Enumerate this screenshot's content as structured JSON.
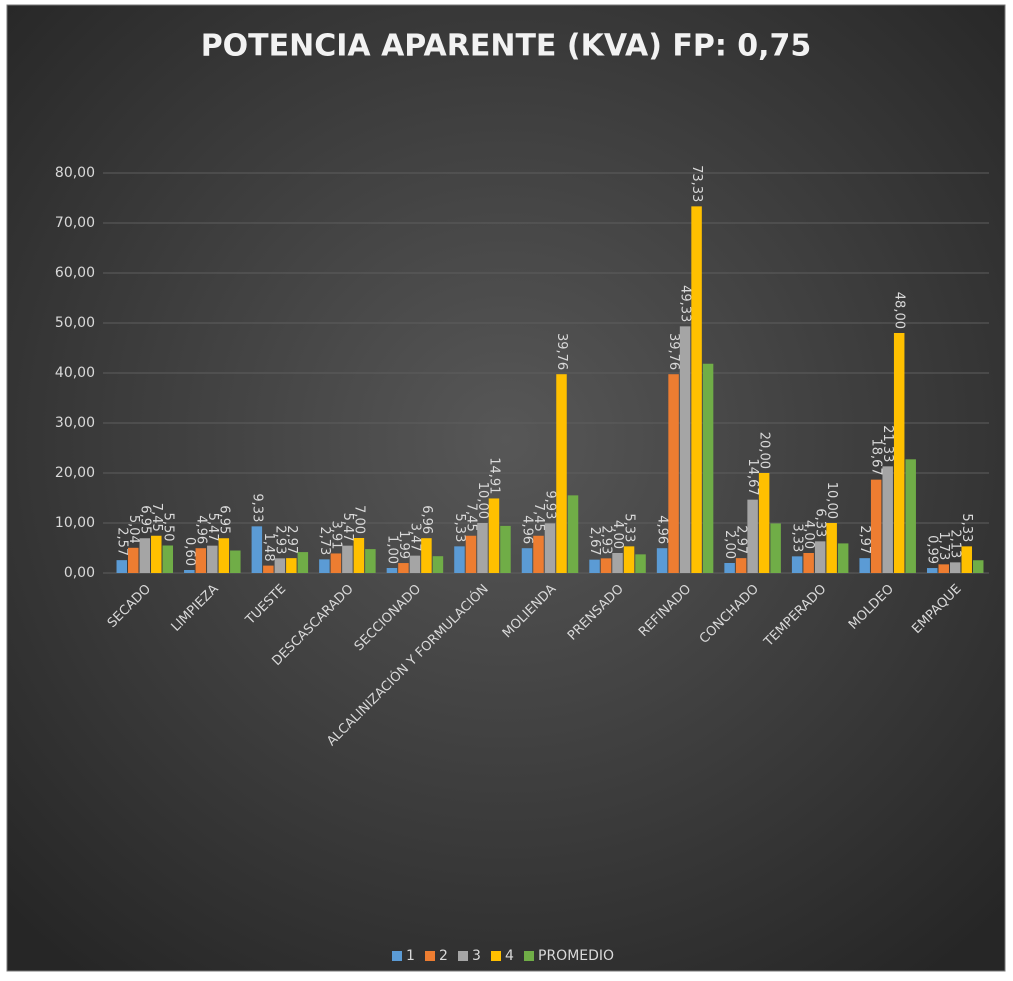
{
  "chart_data": {
    "type": "bar",
    "title": "POTENCIA APARENTE (KVA) FP: 0,75",
    "categories": [
      "SECADO",
      "LIMPIEZA",
      "TUESTE",
      "DESCASCARADO",
      "SECCIONADO",
      "ALCALINIZACIÓN Y FORMULACIÓN",
      "MOLIENDA",
      "PRENSADO",
      "REFINADO",
      "CONCHADO",
      "TEMPERADO",
      "MOLDEO",
      "EMPAQUE"
    ],
    "series": [
      {
        "name": "1",
        "color": "#5b9bd5",
        "values": [
          2.57,
          0.6,
          9.33,
          2.73,
          1.0,
          5.33,
          4.96,
          2.67,
          4.96,
          2.0,
          3.33,
          2.97,
          0.99
        ],
        "value_labels": [
          "2,57",
          "0,60",
          "9,33",
          "2,73",
          "1,00",
          "5,33",
          "4,96",
          "2,67",
          "4,96",
          "2,00",
          "3,33",
          "2,97",
          "0,99"
        ]
      },
      {
        "name": "2",
        "color": "#ed7d31",
        "values": [
          5.04,
          4.96,
          1.48,
          3.91,
          1.99,
          7.45,
          7.45,
          2.93,
          39.76,
          2.97,
          4.0,
          18.67,
          1.73
        ],
        "value_labels": [
          "5,04",
          "4,96",
          "1,48",
          "3,91",
          "1,99",
          "7,45",
          "7,45",
          "2,93",
          "39,76",
          "2,97",
          "4,00",
          "18,67",
          "1,73"
        ]
      },
      {
        "name": "3",
        "color": "#a5a5a5",
        "values": [
          6.95,
          5.47,
          2.93,
          5.47,
          3.47,
          10.0,
          9.93,
          4.0,
          49.33,
          14.67,
          6.33,
          21.33,
          2.13
        ],
        "value_labels": [
          "6,95",
          "5,47",
          "2,93",
          "5,47",
          "3,47",
          "10,00",
          "9,93",
          "4,00",
          "49,33",
          "14,67",
          "6,33",
          "21,33",
          "2,13"
        ]
      },
      {
        "name": "4",
        "color": "#ffc000",
        "values": [
          7.45,
          6.95,
          2.97,
          7.0,
          6.96,
          14.91,
          39.76,
          5.33,
          73.33,
          20.0,
          10.0,
          48.0,
          5.33
        ],
        "value_labels": [
          "7,45",
          "6,95",
          "2,97",
          "7,00",
          "6,96",
          "14,91",
          "39,76",
          "5,33",
          "73,33",
          "20,00",
          "10,00",
          "48,00",
          "5,33"
        ]
      },
      {
        "name": "PROMEDIO",
        "color": "#70ad47",
        "values": [
          5.5,
          4.5,
          4.18,
          4.78,
          3.36,
          9.42,
          15.53,
          3.73,
          41.85,
          9.91,
          5.92,
          22.74,
          2.55
        ],
        "value_labels": [
          "5,50",
          null,
          null,
          null,
          null,
          null,
          null,
          null,
          null,
          null,
          null,
          null,
          null
        ]
      }
    ],
    "ylim": [
      0,
      80
    ],
    "yticks": [
      {
        "value": 0,
        "label": "0,00"
      },
      {
        "value": 10,
        "label": "10,00"
      },
      {
        "value": 20,
        "label": "20,00"
      },
      {
        "value": 30,
        "label": "30,00"
      },
      {
        "value": 40,
        "label": "40,00"
      },
      {
        "value": 50,
        "label": "50,00"
      },
      {
        "value": 60,
        "label": "60,00"
      },
      {
        "value": 70,
        "label": "70,00"
      },
      {
        "value": 80,
        "label": "80,00"
      }
    ],
    "grid": true,
    "legend": "bottom"
  }
}
